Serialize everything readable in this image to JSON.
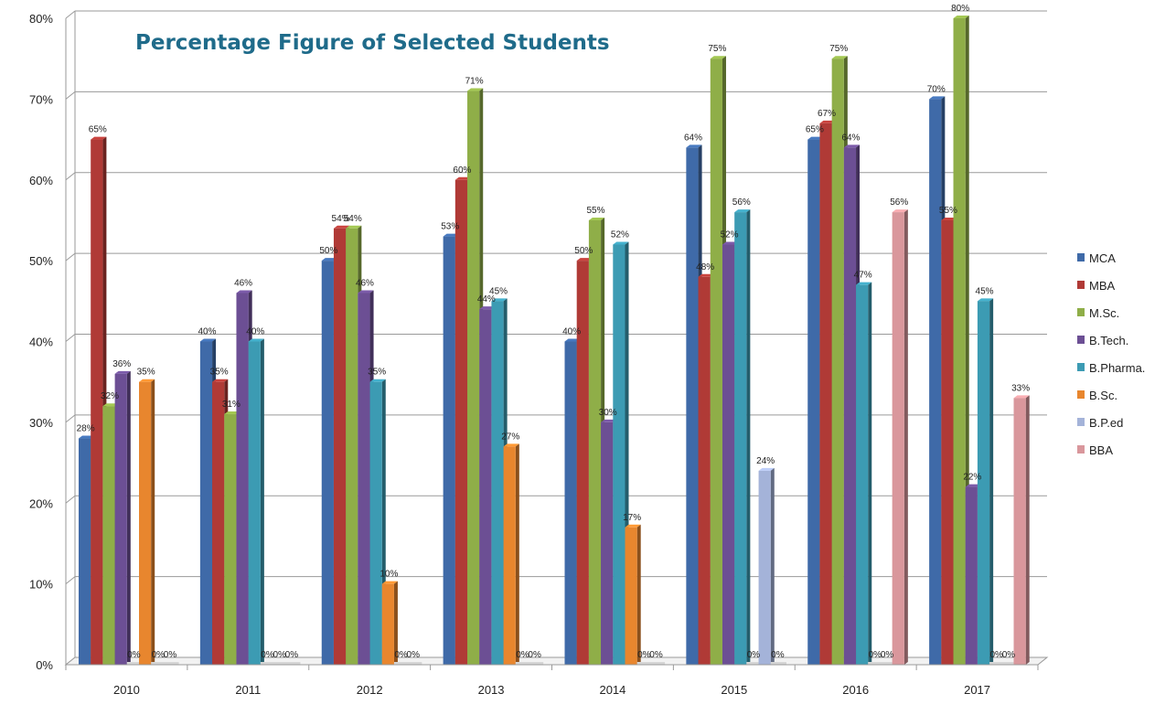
{
  "chart_data": {
    "type": "bar",
    "title": "Percentage Figure of Selected Students",
    "xlabel": "",
    "ylabel": "",
    "ylim": [
      0,
      80
    ],
    "y_ticks": [
      "0%",
      "10%",
      "20%",
      "30%",
      "40%",
      "50%",
      "60%",
      "70%",
      "80%"
    ],
    "y_tick_values": [
      0,
      10,
      20,
      30,
      40,
      50,
      60,
      70,
      80
    ],
    "grid": true,
    "legend_position": "right",
    "categories": [
      "2010",
      "2011",
      "2012",
      "2013",
      "2014",
      "2015",
      "2016",
      "2017"
    ],
    "series": [
      {
        "name": "MCA",
        "color": "#3f6aa8",
        "values": [
          28,
          40,
          50,
          53,
          40,
          64,
          65,
          70
        ],
        "labels": [
          "28%",
          "40%",
          "50%",
          "53%",
          "40%",
          "64%",
          "65%",
          "70%"
        ]
      },
      {
        "name": "MBA",
        "color": "#b03a36",
        "values": [
          65,
          35,
          54,
          60,
          50,
          48,
          67,
          55
        ],
        "labels": [
          "65%",
          "35%",
          "54%",
          "60%",
          "50%",
          "48%",
          "67%",
          "55%"
        ]
      },
      {
        "name": "M.Sc.",
        "color": "#8fae48",
        "values": [
          32,
          31,
          54,
          71,
          55,
          75,
          75,
          80
        ],
        "labels": [
          "32%",
          "31%",
          "54%",
          "71%",
          "55%",
          "75%",
          "75%",
          "80%"
        ]
      },
      {
        "name": "B.Tech.",
        "color": "#6c4f94",
        "values": [
          36,
          46,
          46,
          44,
          30,
          52,
          64,
          22
        ],
        "labels": [
          "36%",
          "46%",
          "46%",
          "44%",
          "30%",
          "52%",
          "64%",
          "22%"
        ]
      },
      {
        "name": "B.Pharma.",
        "color": "#3c9bb3",
        "values": [
          0,
          40,
          35,
          45,
          52,
          56,
          47,
          45
        ],
        "labels": [
          "0%",
          "40%",
          "35%",
          "45%",
          "52%",
          "56%",
          "47%",
          "45%"
        ]
      },
      {
        "name": "B.Sc.",
        "color": "#e8862e",
        "values": [
          35,
          0,
          10,
          27,
          17,
          0,
          0,
          0
        ],
        "labels": [
          "35%",
          "0%",
          "10%",
          "27%",
          "17%",
          "0%",
          "0%",
          "0%"
        ]
      },
      {
        "name": "B.P.ed",
        "color": "#a4b3d9",
        "values": [
          0,
          0,
          0,
          0,
          0,
          24,
          0,
          0
        ],
        "labels": [
          "0%",
          "0%",
          "0%",
          "0%",
          "0%",
          "24%",
          "0%",
          "0%"
        ]
      },
      {
        "name": "BBA",
        "color": "#d9979c",
        "values": [
          0,
          0,
          0,
          0,
          0,
          0,
          56,
          33
        ],
        "labels": [
          "0%",
          "0%",
          "0%",
          "0%",
          "0%",
          "0%",
          "56%",
          "33%"
        ]
      }
    ]
  }
}
